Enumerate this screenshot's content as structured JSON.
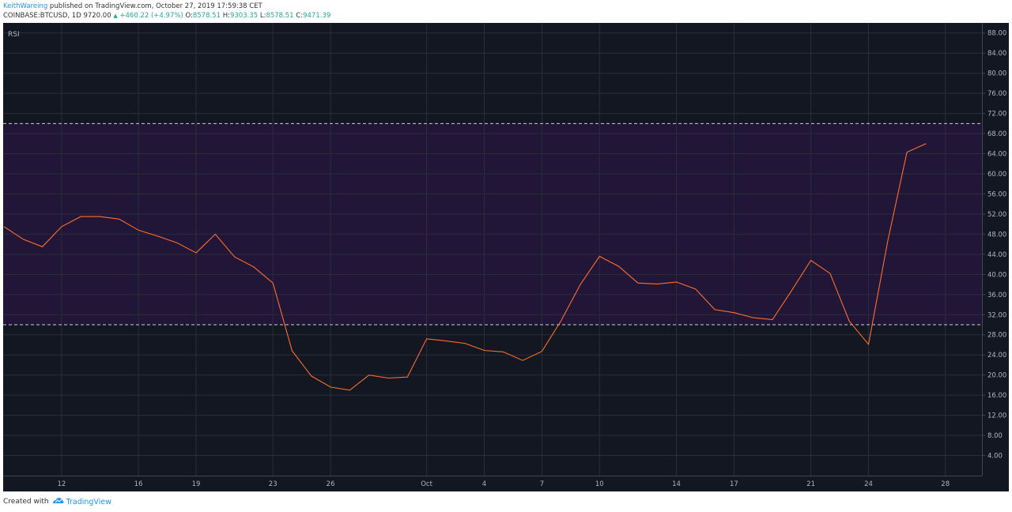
{
  "header": {
    "author": "KeithWareing",
    "published": "published on TradingView.com, October 27, 2019 17:59:38 CET",
    "symbol": "COINBASE:BTCUSD, 1D",
    "last": "9720.00",
    "change": "+460.22 (+4.97%)",
    "open_label": "O:",
    "open": "8578.51",
    "high_label": "H:",
    "high": "9303.35",
    "low_label": "L:",
    "low": "8578.51",
    "close_label": "C:",
    "close": "9471.39"
  },
  "colors": {
    "background": "#131722",
    "band": "#211638",
    "line": "#ff6d2e",
    "grid": "#2a2e39",
    "axis_text": "#b2b5be"
  },
  "chart_data": {
    "type": "line",
    "title": "RSI",
    "ylim": [
      0,
      90
    ],
    "y_ticks": [
      4,
      8,
      12,
      16,
      20,
      24,
      28,
      32,
      36,
      40,
      44,
      48,
      52,
      56,
      60,
      64,
      68,
      72,
      76,
      80,
      84,
      88
    ],
    "y_tick_labels": [
      "4.00",
      "8.00",
      "12.00",
      "16.00",
      "20.00",
      "24.00",
      "28.00",
      "32.00",
      "36.00",
      "40.00",
      "44.00",
      "48.00",
      "52.00",
      "56.00",
      "60.00",
      "64.00",
      "68.00",
      "72.00",
      "76.00",
      "80.00",
      "84.00",
      "88.00"
    ],
    "x_ticks": [
      {
        "label": "12",
        "index": 3
      },
      {
        "label": "16",
        "index": 7
      },
      {
        "label": "19",
        "index": 10
      },
      {
        "label": "23",
        "index": 14
      },
      {
        "label": "26",
        "index": 17
      },
      {
        "label": "Oct",
        "index": 22
      },
      {
        "label": "4",
        "index": 25
      },
      {
        "label": "7",
        "index": 28
      },
      {
        "label": "10",
        "index": 31
      },
      {
        "label": "14",
        "index": 35
      },
      {
        "label": "17",
        "index": 38
      },
      {
        "label": "21",
        "index": 42
      },
      {
        "label": "24",
        "index": 45
      },
      {
        "label": "28",
        "index": 49
      }
    ],
    "upper_band": 70,
    "lower_band": 30,
    "grid": true,
    "series": [
      {
        "values": [
          49.5,
          47,
          45.5,
          49.5,
          51.5,
          51.5,
          51,
          48.8,
          47.6,
          46.3,
          44.3,
          48,
          43.5,
          41.5,
          38.3,
          24.8,
          19.8,
          17.6,
          17,
          20,
          19.4,
          19.6,
          27.2,
          26.8,
          26.3,
          24.9,
          24.6,
          22.9,
          24.7,
          30.8,
          38,
          43.6,
          41.6,
          38.3,
          38.1,
          38.5,
          37.1,
          33,
          32.4,
          31.4,
          31,
          36.8,
          42.8,
          40.2,
          30.7,
          26.1,
          46.6,
          64.3,
          66
        ]
      }
    ]
  },
  "footer": {
    "created_with": "Created with",
    "brand": "TradingView"
  }
}
